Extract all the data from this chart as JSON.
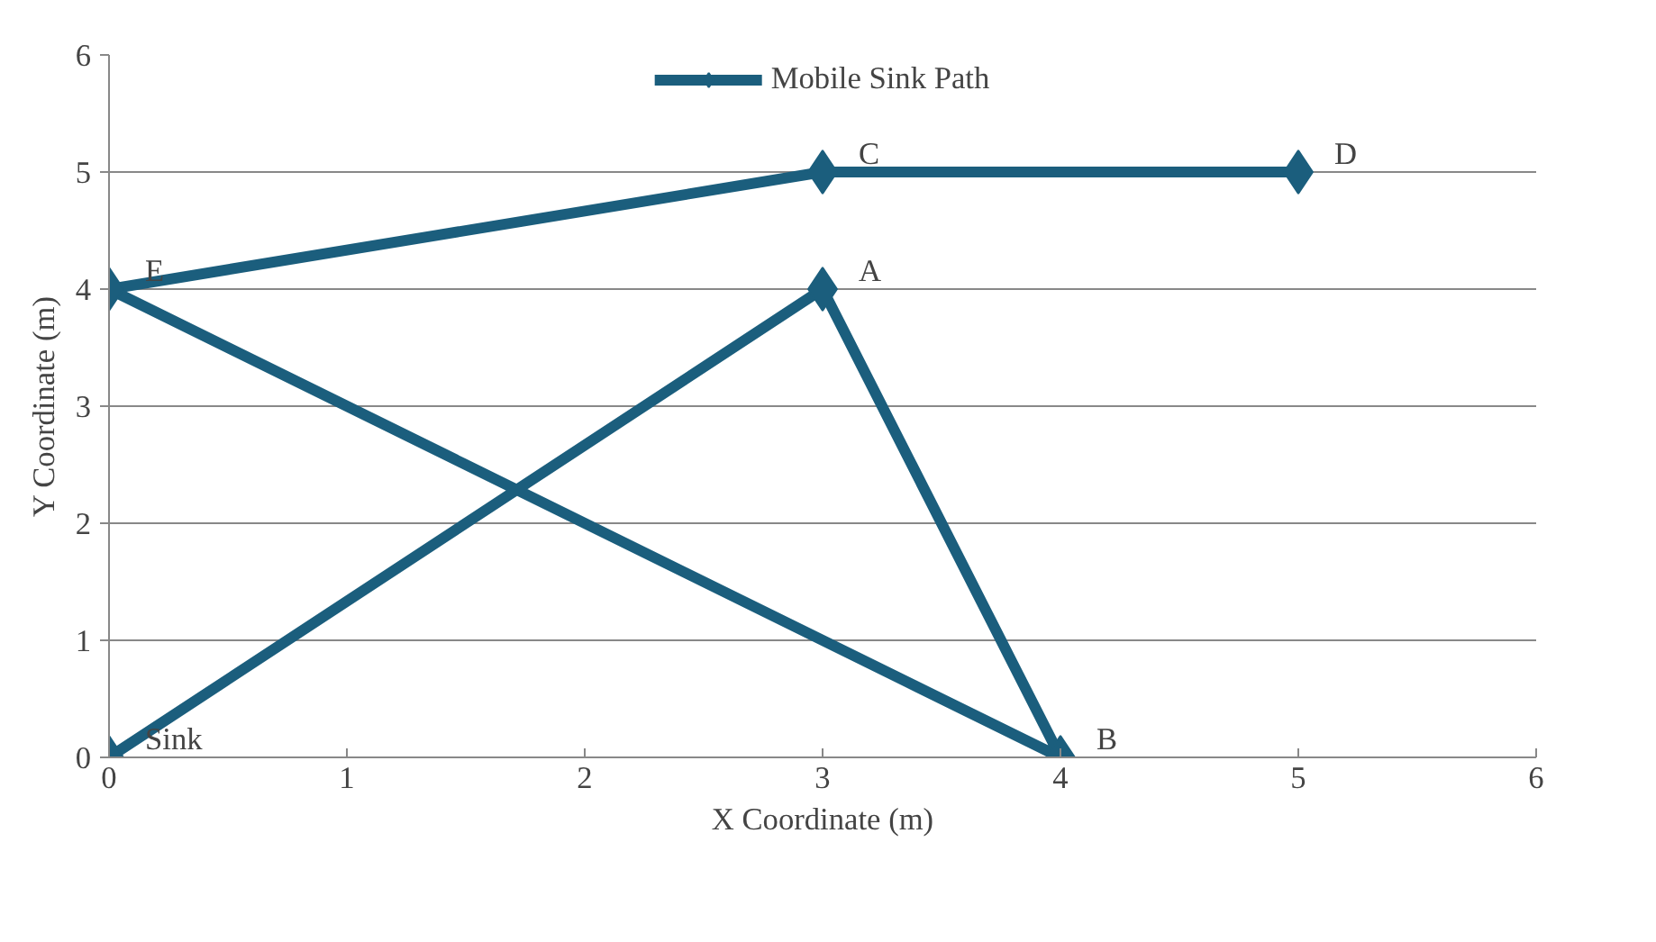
{
  "chart_data": {
    "type": "line",
    "xlabel": "X Coordinate (m)",
    "ylabel": "Y Coordinate (m)",
    "series": [
      {
        "name": "Mobile Sink Path",
        "color": "#1b5e7d",
        "x": [
          0,
          3,
          4,
          0,
          3,
          5
        ],
        "values": [
          0,
          4,
          0,
          4,
          5,
          5
        ]
      }
    ],
    "annotations": [
      {
        "text": "Sink",
        "x": 0,
        "y": 0
      },
      {
        "text": "A",
        "x": 3,
        "y": 4
      },
      {
        "text": "B",
        "x": 4,
        "y": 0
      },
      {
        "text": "E",
        "x": 0,
        "y": 4
      },
      {
        "text": "C",
        "x": 3,
        "y": 5
      },
      {
        "text": "D",
        "x": 5,
        "y": 5
      }
    ],
    "xlim": [
      0,
      6
    ],
    "ylim": [
      0,
      6
    ],
    "xticks": [
      0,
      1,
      2,
      3,
      4,
      5,
      6
    ],
    "yticks": [
      0,
      1,
      2,
      3,
      4,
      5,
      6
    ],
    "grid": "y",
    "legend": "top",
    "marker": "diamond",
    "line_style": "solid"
  }
}
